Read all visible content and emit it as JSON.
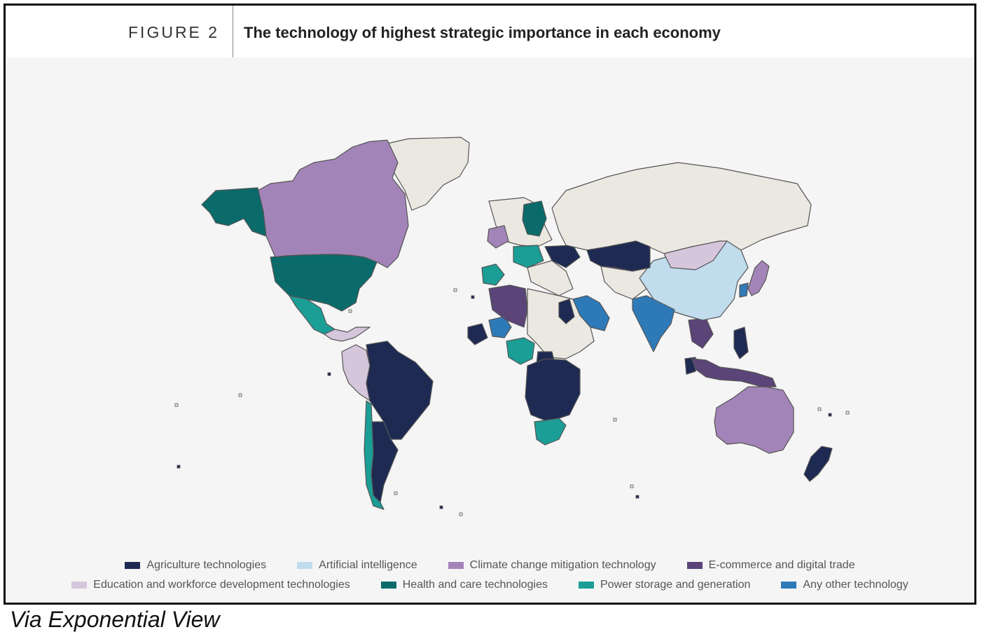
{
  "figure": {
    "label": "FIGURE 2",
    "title": "The technology of highest strategic importance in each economy"
  },
  "colors": {
    "agriculture": "#1e2a52",
    "ai": "#c0dced",
    "climate": "#a384b8",
    "ecommerce": "#5a4478",
    "education": "#d6c6dc",
    "health": "#0b6b6b",
    "power": "#1a9e96",
    "other": "#2e7ab8",
    "nodata": "#ebe8e1",
    "ocean": "#f5f5f5",
    "border": "#555555"
  },
  "legend": [
    {
      "key": "agriculture",
      "label": "Agriculture technologies"
    },
    {
      "key": "ai",
      "label": "Artificial intelligence"
    },
    {
      "key": "climate",
      "label": "Climate change mitigation technology"
    },
    {
      "key": "ecommerce",
      "label": "E-commerce and digital trade"
    },
    {
      "key": "education",
      "label": "Education and workforce development technologies"
    },
    {
      "key": "health",
      "label": "Health and care technologies"
    },
    {
      "key": "power",
      "label": "Power storage and generation"
    },
    {
      "key": "other",
      "label": "Any other technology"
    }
  ],
  "regions": [
    {
      "name": "Greenland",
      "category": "nodata"
    },
    {
      "name": "Canada",
      "category": "climate"
    },
    {
      "name": "Alaska",
      "category": "health"
    },
    {
      "name": "United States",
      "category": "health"
    },
    {
      "name": "Mexico",
      "category": "power"
    },
    {
      "name": "Central America",
      "category": "education"
    },
    {
      "name": "Colombia and Peru",
      "category": "education"
    },
    {
      "name": "Brazil",
      "category": "agriculture"
    },
    {
      "name": "Argentina",
      "category": "agriculture"
    },
    {
      "name": "Chile",
      "category": "power"
    },
    {
      "name": "Russia",
      "category": "nodata"
    },
    {
      "name": "China",
      "category": "ai"
    },
    {
      "name": "Mongolia",
      "category": "education"
    },
    {
      "name": "India",
      "category": "other"
    },
    {
      "name": "Kazakhstan",
      "category": "agriculture"
    },
    {
      "name": "Saudi Arabia",
      "category": "other"
    },
    {
      "name": "Algeria",
      "category": "ecommerce"
    },
    {
      "name": "Nigeria",
      "category": "power"
    },
    {
      "name": "Southern Africa",
      "category": "agriculture"
    },
    {
      "name": "South Africa",
      "category": "power"
    },
    {
      "name": "Australia",
      "category": "climate"
    },
    {
      "name": "Indonesia",
      "category": "ecommerce"
    },
    {
      "name": "New Zealand",
      "category": "agriculture"
    },
    {
      "name": "Japan",
      "category": "climate"
    }
  ],
  "source": "Via Exponential View"
}
